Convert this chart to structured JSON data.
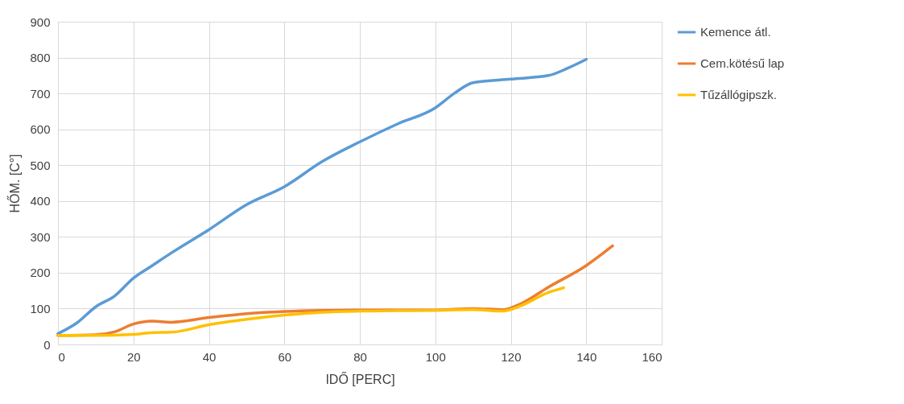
{
  "chart_data": {
    "type": "line",
    "xlabel": "IDŐ [PERC]",
    "ylabel": "HŐM. [C°]",
    "xlim": [
      0,
      160
    ],
    "xticks": [
      0,
      20,
      40,
      60,
      80,
      100,
      120,
      140,
      160
    ],
    "ylim": [
      0,
      900
    ],
    "yticks": [
      0,
      100,
      200,
      300,
      400,
      500,
      600,
      700,
      800,
      900
    ],
    "grid": true,
    "legend": "right",
    "marker": "none",
    "line_style": "solid",
    "series": [
      {
        "name": "Kemence átl.",
        "color": "#5b9bd5",
        "x": [
          0,
          5,
          10,
          15,
          20,
          25,
          30,
          40,
          50,
          60,
          70,
          80,
          90,
          100,
          105,
          110,
          120,
          130,
          135,
          140
        ],
        "values": [
          30,
          60,
          105,
          135,
          185,
          220,
          255,
          320,
          390,
          440,
          510,
          565,
          615,
          660,
          700,
          730,
          740,
          750,
          770,
          795
        ]
      },
      {
        "name": "Cem.kötésű lap",
        "color": "#ed7d31",
        "x": [
          0,
          10,
          15,
          20,
          25,
          30,
          40,
          50,
          60,
          70,
          80,
          90,
          100,
          110,
          118,
          122,
          130,
          140,
          147
        ],
        "values": [
          25,
          27,
          35,
          57,
          65,
          62,
          75,
          86,
          92,
          95,
          96,
          96,
          96,
          100,
          97,
          110,
          160,
          220,
          275
        ]
      },
      {
        "name": "Tűzállógipszk.",
        "color": "#ffc000",
        "x": [
          0,
          10,
          20,
          25,
          30,
          40,
          50,
          60,
          70,
          80,
          90,
          100,
          110,
          118,
          122,
          130,
          134
        ],
        "values": [
          25,
          25,
          28,
          33,
          34,
          55,
          70,
          82,
          90,
          93,
          94,
          95,
          97,
          93,
          105,
          145,
          158
        ]
      }
    ]
  }
}
